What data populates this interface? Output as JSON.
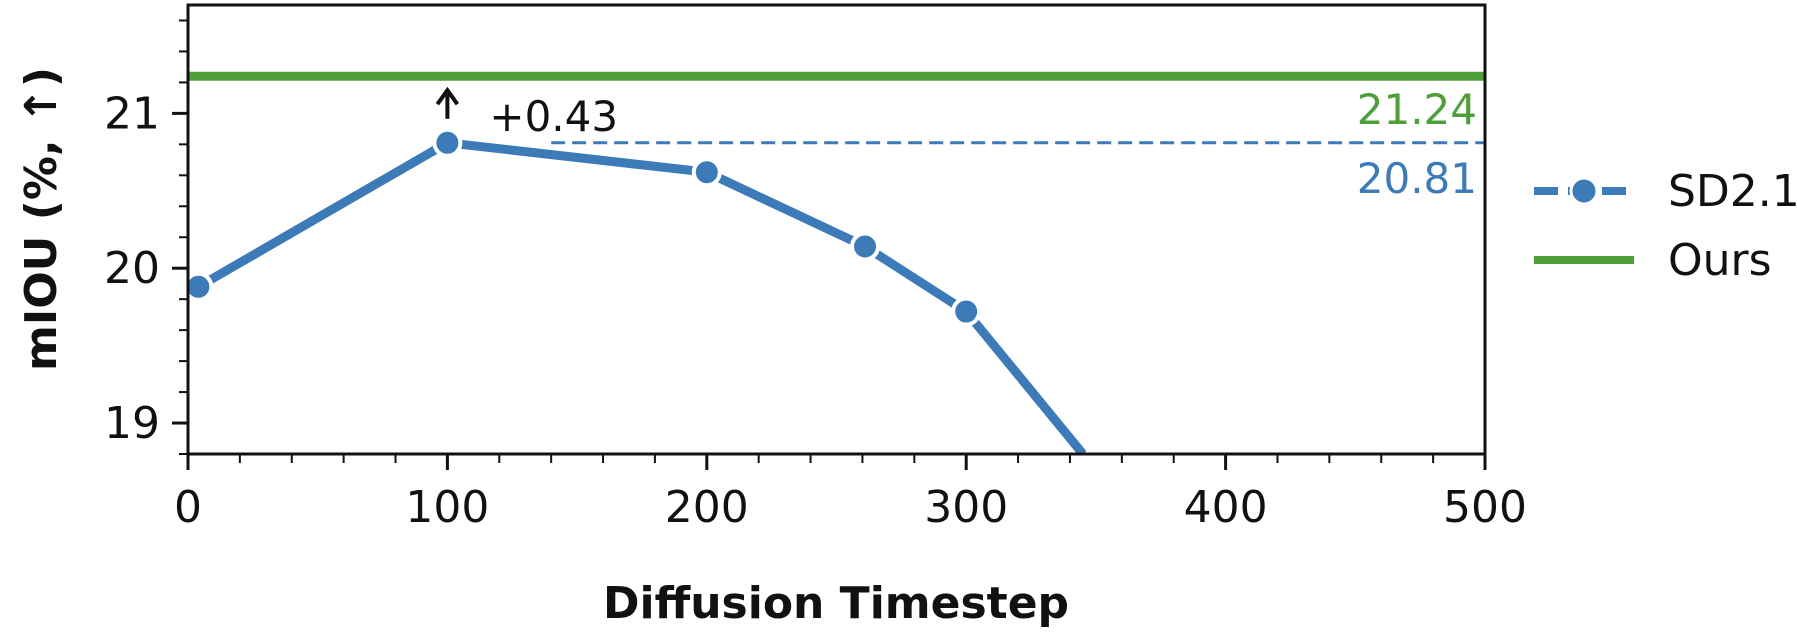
{
  "chart_data": {
    "type": "line",
    "xlabel": "Diffusion Timestep",
    "ylabel": "mIOU (%, ↑)",
    "xlim": [
      0,
      500
    ],
    "ylim": [
      18.8,
      21.7
    ],
    "xticks": [
      0,
      100,
      200,
      300,
      400,
      500
    ],
    "xtick_labels": [
      "0",
      "100",
      "200",
      "300",
      "400",
      "500"
    ],
    "yticks": [
      19,
      20,
      21
    ],
    "ytick_labels": [
      "19",
      "20",
      "21"
    ],
    "grid": false,
    "legend_position": "right-outside",
    "series": [
      {
        "name": "SD2.1",
        "style": "line-with-markers",
        "color": "#3d7ab8",
        "x": [
          4,
          100,
          200,
          261,
          300,
          345
        ],
        "y": [
          19.88,
          20.81,
          20.62,
          20.14,
          19.72,
          18.8
        ],
        "marker_count": 5
      },
      {
        "name": "Ours",
        "style": "horizontal-line",
        "color": "#4e9e3a",
        "y": 21.24
      }
    ],
    "annotations": {
      "sd_value": {
        "label": "20.81",
        "y": 20.81,
        "color": "#3d7ab8"
      },
      "ours_value": {
        "label": "21.24",
        "y": 21.24,
        "color": "#4e9e3a"
      },
      "gain": {
        "label": "+0.43",
        "x": 100,
        "color": "#111111"
      }
    }
  }
}
